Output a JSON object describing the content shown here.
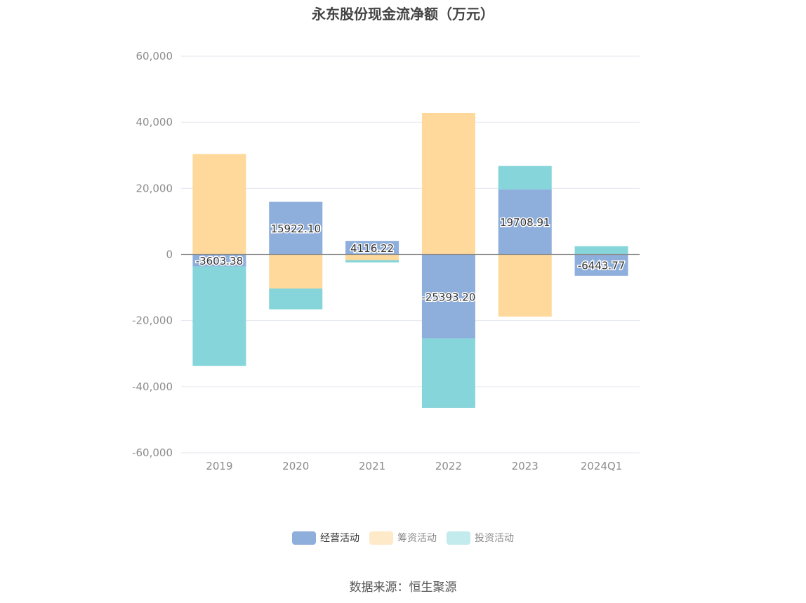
{
  "chart_data": {
    "type": "bar",
    "stacked": true,
    "title": "永东股份现金流净额（万元）",
    "categories": [
      "2019",
      "2020",
      "2021",
      "2022",
      "2023",
      "2024Q1"
    ],
    "ylim": [
      -60000,
      60000
    ],
    "yticks": [
      60000,
      40000,
      20000,
      0,
      -20000,
      -40000,
      -60000
    ],
    "ytick_labels": [
      "60,000",
      "40,000",
      "20,000",
      "0",
      "-20,000",
      "-40,000",
      "-60,000"
    ],
    "grid": true,
    "legend_position": "bottom",
    "series": [
      {
        "name": "经营活动",
        "color": "#8eaedb",
        "legend_color": "#8eaedb",
        "values": [
          -3603.38,
          15922.1,
          4116.22,
          -25393.2,
          19708.91,
          -6443.77
        ],
        "labels": [
          "-3603.38",
          "15922.10",
          "4116.22",
          "-25393.20",
          "19708.91",
          "-6443.77"
        ]
      },
      {
        "name": "筹资活动",
        "color": "#fed99b",
        "legend_color": "#fee9c9",
        "values": [
          30400,
          -10300,
          -1700,
          42800,
          -18800,
          0
        ]
      },
      {
        "name": "投资活动",
        "color": "#86d5da",
        "legend_color": "#c3eaec",
        "values": [
          -30100,
          -6300,
          -700,
          -21000,
          7100,
          2500
        ]
      }
    ]
  },
  "source": "数据来源：恒生聚源"
}
